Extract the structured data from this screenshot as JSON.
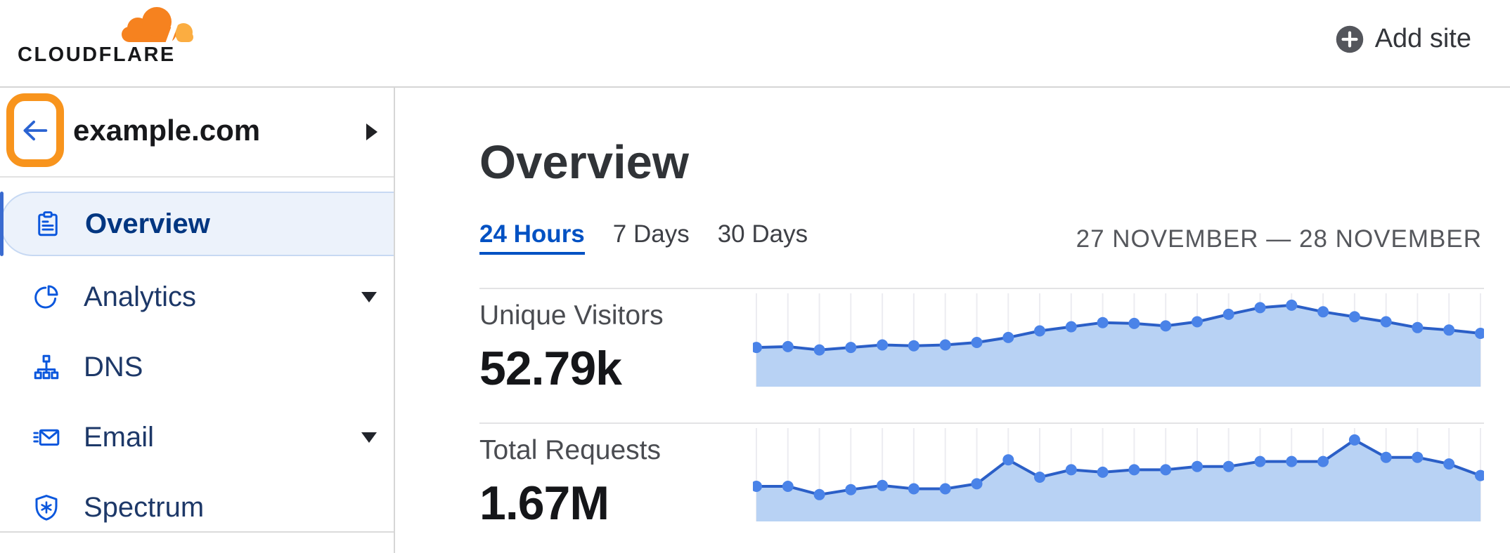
{
  "header": {
    "brand": "CLOUDFLARE",
    "add_site_label": "Add site"
  },
  "sidebar": {
    "back_button": "back",
    "site_domain": "example.com",
    "items": [
      {
        "label": "Overview",
        "icon": "clipboard-icon",
        "selected": true,
        "expandable": false
      },
      {
        "label": "Analytics",
        "icon": "pie-chart-icon",
        "selected": false,
        "expandable": true
      },
      {
        "label": "DNS",
        "icon": "network-icon",
        "selected": false,
        "expandable": false
      },
      {
        "label": "Email",
        "icon": "email-icon",
        "selected": false,
        "expandable": true
      },
      {
        "label": "Spectrum",
        "icon": "shield-icon",
        "selected": false,
        "expandable": false
      }
    ]
  },
  "main": {
    "title": "Overview",
    "tabs": [
      {
        "label": "24 Hours",
        "active": true
      },
      {
        "label": "7 Days",
        "active": false
      },
      {
        "label": "30 Days",
        "active": false
      }
    ],
    "date_range": "27 NOVEMBER — 28 NOVEMBER",
    "metrics": [
      {
        "label": "Unique Visitors",
        "value": "52.79k"
      },
      {
        "label": "Total Requests",
        "value": "1.67M"
      }
    ]
  },
  "colors": {
    "accent_blue": "#0051c3",
    "nav_icon_blue": "#0b57dd",
    "highlight_orange": "#f8941d",
    "brand_orange": "#f6821f",
    "brand_orange_light": "#fbad41"
  },
  "chart_data": [
    {
      "type": "area",
      "title": "Unique Visitors",
      "displayed_total": "52.79k",
      "x_label": "time over 24 hours (27–28 November), ticks unlabeled",
      "x_count": 24,
      "values_relative": [
        44,
        45,
        41,
        44,
        47,
        46,
        47,
        50,
        56,
        64,
        69,
        74,
        73,
        70,
        75,
        84,
        92,
        95,
        87,
        81,
        75,
        68,
        65,
        61
      ],
      "units": "relative height 0-100, estimated from pixels (no y-axis shown)",
      "ylim": [
        0,
        100
      ],
      "grid": "vertical line at each point",
      "legend": "none",
      "colors": {
        "line": "#2b5fc7",
        "fill": "#b8d2f4",
        "dot": "#4a83e8",
        "grid": "#ececf1"
      }
    },
    {
      "type": "area",
      "title": "Total Requests",
      "displayed_total": "1.67M",
      "x_label": "time over 24 hours (27–28 November), ticks unlabeled",
      "x_count": 24,
      "values_relative": [
        39,
        39,
        29,
        35,
        40,
        36,
        36,
        42,
        71,
        50,
        59,
        56,
        59,
        59,
        63,
        63,
        69,
        69,
        69,
        95,
        74,
        74,
        66,
        52
      ],
      "units": "relative height 0-100, estimated from pixels (no y-axis shown)",
      "ylim": [
        0,
        100
      ],
      "grid": "vertical line at each point",
      "legend": "none",
      "colors": {
        "line": "#2b5fc7",
        "fill": "#b8d2f4",
        "dot": "#4a83e8",
        "grid": "#ececf1"
      }
    }
  ]
}
